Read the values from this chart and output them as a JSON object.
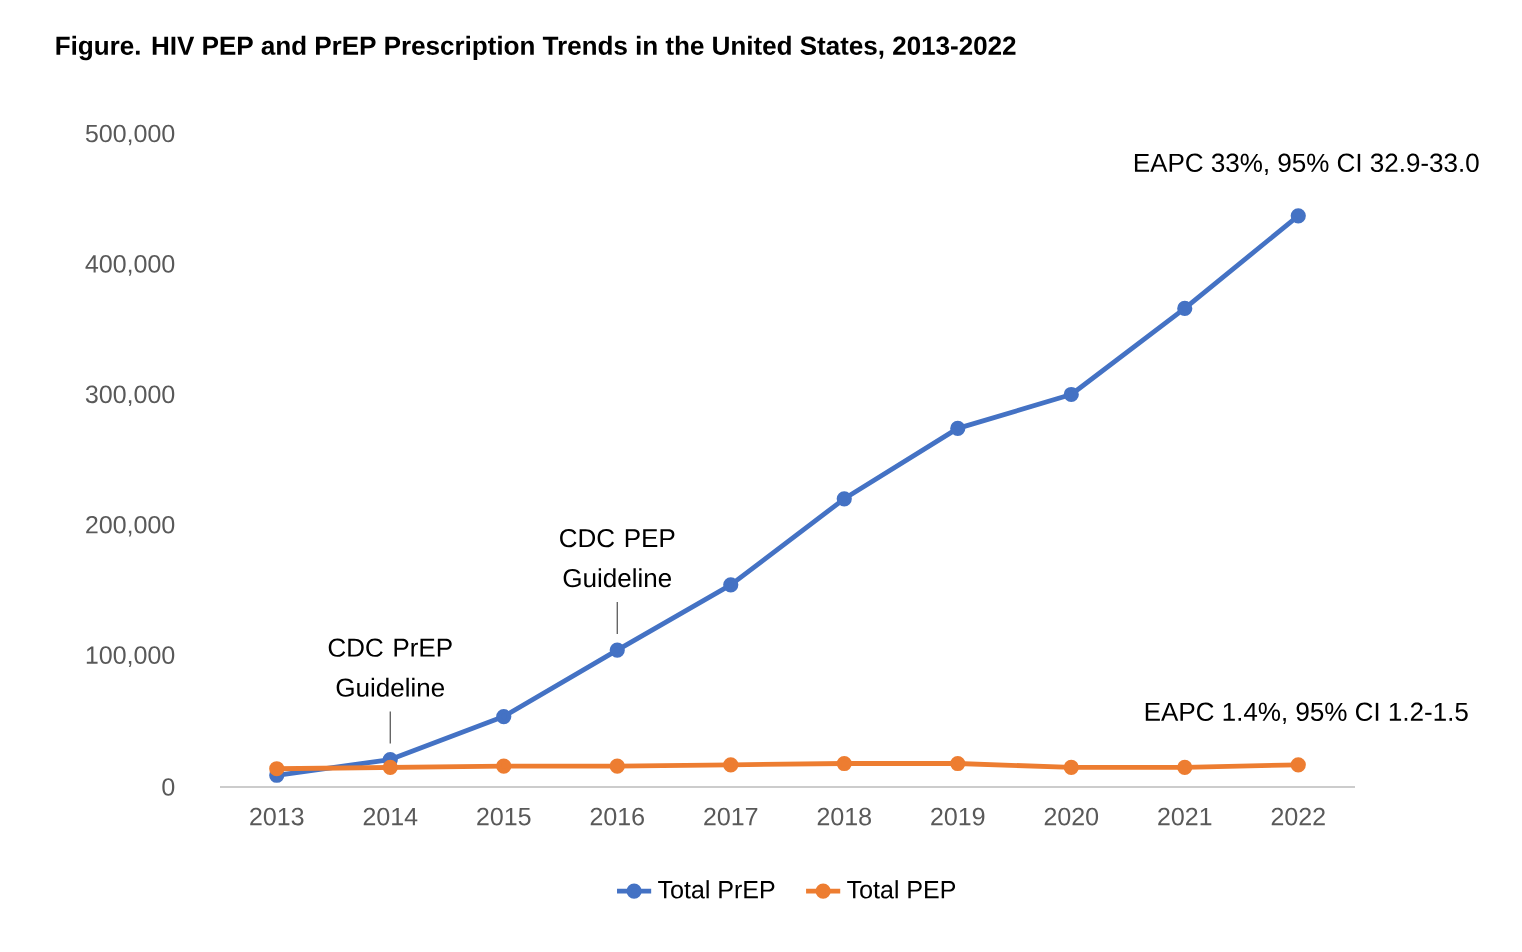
{
  "chart_data": {
    "type": "line",
    "title": "Figure. HIV PEP and PrEP Prescription Trends in the United States, 2013-2022",
    "categories": [
      "2013",
      "2014",
      "2015",
      "2016",
      "2017",
      "2018",
      "2019",
      "2020",
      "2021",
      "2022"
    ],
    "series": [
      {
        "name": "Total PrEP",
        "color": "#4472c4",
        "values": [
          9000,
          21000,
          54000,
          105000,
          155000,
          221000,
          275000,
          301000,
          367000,
          438000
        ]
      },
      {
        "name": "Total PEP",
        "color": "#ed7d31",
        "values": [
          14000,
          15000,
          16000,
          16000,
          17000,
          18000,
          18000,
          15000,
          15000,
          17000
        ]
      }
    ],
    "ylim": [
      0,
      500000
    ],
    "yticks": [
      0,
      {
        "value": 100000,
        "label": "100,000"
      },
      {
        "value": 200000,
        "label": "200,000"
      },
      {
        "value": 300000,
        "label": "300,000"
      },
      {
        "value": 400000,
        "label": "400,000"
      },
      {
        "value": 500000,
        "label": "500,000"
      }
    ],
    "annotations": [
      {
        "text": "CDC PrEP Guideline",
        "x": "2014",
        "y": 21000
      },
      {
        "text": "CDC PEP Guideline",
        "x": "2016",
        "y": 105000
      },
      {
        "text": "EAPC 33%, 95% CI 32.9-33.0",
        "x": "2022",
        "y": 438000
      },
      {
        "text": "EAPC 1.4%, 95% CI 1.2-1.5",
        "x": "2022",
        "y": 17000
      }
    ],
    "marker": "circle",
    "line_style": "solid",
    "legend": "bottom",
    "grid": false
  }
}
